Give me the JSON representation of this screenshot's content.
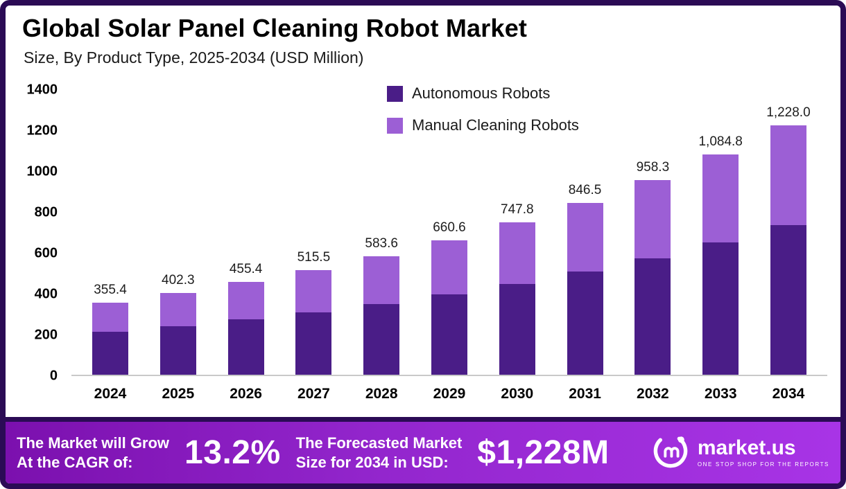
{
  "chart_data": {
    "type": "bar",
    "stacked": true,
    "title": "Global Solar Panel Cleaning Robot Market",
    "subtitle": "Size, By Product Type, 2025-2034 (USD Million)",
    "categories": [
      "2024",
      "2025",
      "2026",
      "2027",
      "2028",
      "2029",
      "2030",
      "2031",
      "2032",
      "2033",
      "2034"
    ],
    "series": [
      {
        "name": "Autonomous Robots",
        "color": "#4a1d87",
        "values": [
          209.9,
          237.4,
          271.8,
          306.3,
          346.9,
          394.6,
          446.5,
          506.6,
          571.8,
          649.9,
          736.8
        ]
      },
      {
        "name": "Manual Cleaning Robots",
        "color": "#9c5fd5",
        "values": [
          145.5,
          164.9,
          183.6,
          209.2,
          236.7,
          266.0,
          301.3,
          339.9,
          386.5,
          434.9,
          491.2
        ]
      }
    ],
    "total_labels": [
      "355.4",
      "402.3",
      "455.4",
      "515.5",
      "583.6",
      "660.6",
      "747.8",
      "846.5",
      "958.3",
      "1,084.8",
      "1,228.0"
    ],
    "totals": [
      355.4,
      402.3,
      455.4,
      515.5,
      583.6,
      660.6,
      747.8,
      846.5,
      958.3,
      1084.8,
      1228.0
    ],
    "y_ticks": [
      0,
      200,
      400,
      600,
      800,
      1000,
      1200,
      1400
    ],
    "ylim": [
      0,
      1400
    ],
    "xlabel": "",
    "ylabel": "",
    "grid": false,
    "legend_position": "top-center"
  },
  "footer": {
    "cagr_line1": "The Market will Grow",
    "cagr_line2": "At the CAGR of:",
    "cagr_value": "13.2%",
    "forecast_line1": "The Forecasted Market",
    "forecast_line2": "Size for 2034 in USD:",
    "forecast_value": "$1,228M",
    "brand_name": "market.us",
    "brand_tagline": "ONE STOP SHOP FOR THE REPORTS"
  },
  "theme": {
    "frame_border": "#2b0b55",
    "footer_gradient_start": "#7b10ae",
    "footer_gradient_end": "#a834e6",
    "axis_line": "#c9c9c9",
    "autonomous_color": "#4a1d87",
    "manual_color": "#9c5fd5"
  }
}
